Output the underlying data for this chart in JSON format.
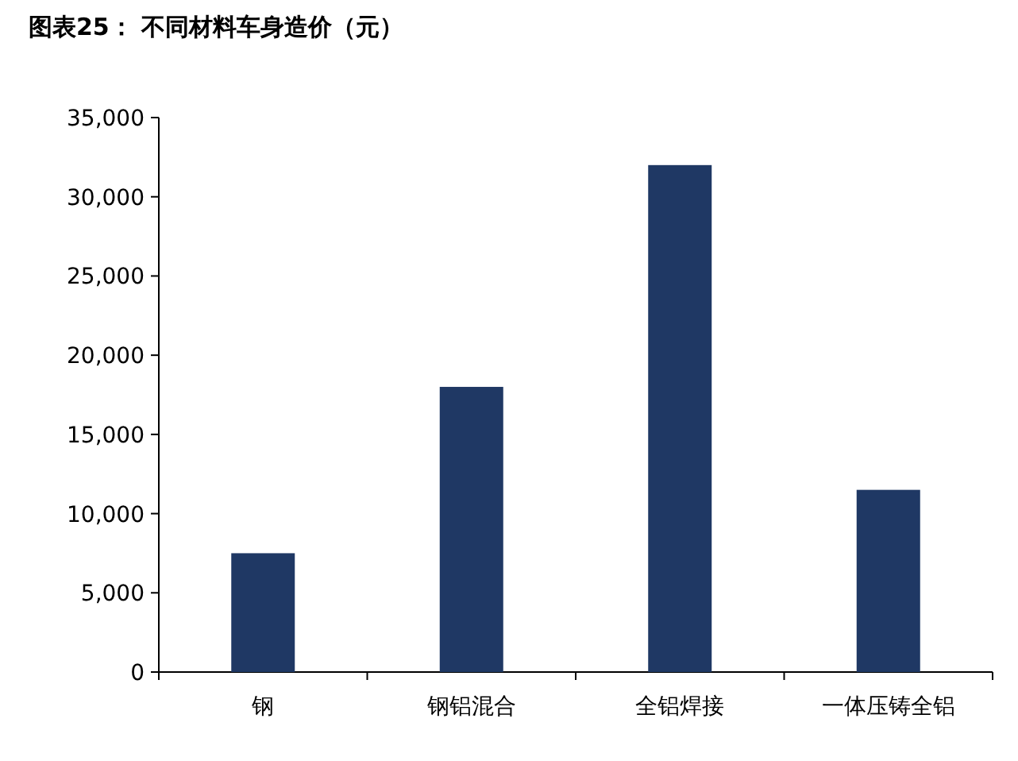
{
  "chart_data": {
    "type": "bar",
    "title": "图表25：  不同材料车身造价（元）",
    "categories": [
      "钢",
      "钢铝混合",
      "全铝焊接",
      "一体压铸全铝"
    ],
    "values": [
      7500,
      18000,
      32000,
      11500
    ],
    "color": "#1f3864",
    "ylim": [
      0,
      35000
    ],
    "yticks": [
      {
        "value": 0,
        "label": "0"
      },
      {
        "value": 5000,
        "label": "5,000"
      },
      {
        "value": 10000,
        "label": "10,000"
      },
      {
        "value": 15000,
        "label": "15,000"
      },
      {
        "value": 20000,
        "label": "20,000"
      },
      {
        "value": 25000,
        "label": "25,000"
      },
      {
        "value": 30000,
        "label": "30,000"
      },
      {
        "value": 35000,
        "label": "35,000"
      }
    ]
  }
}
